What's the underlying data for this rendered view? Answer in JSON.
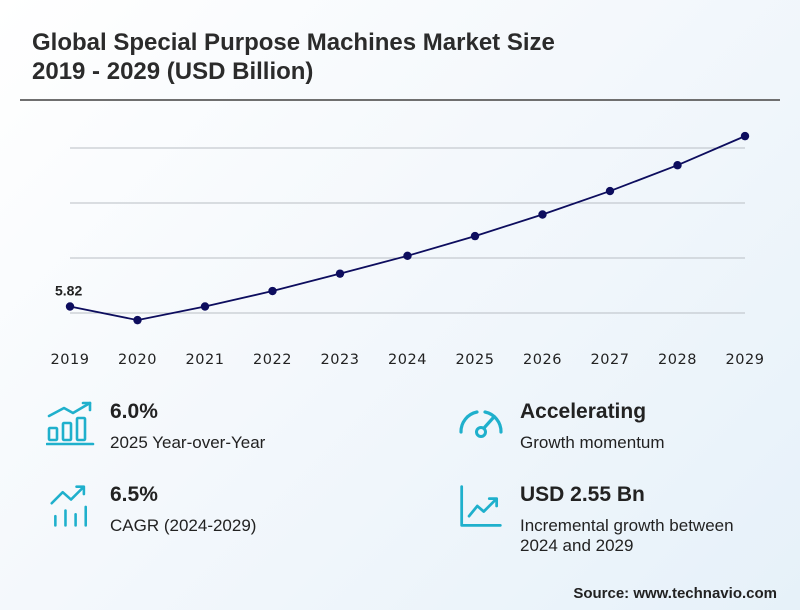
{
  "title_line1": "Global Special Purpose Machines Market Size",
  "title_line2": "2019 - 2029 (USD Billion)",
  "chart_data": {
    "type": "line",
    "x": [
      "2019",
      "2020",
      "2021",
      "2022",
      "2023",
      "2024",
      "2025",
      "2026",
      "2027",
      "2028",
      "2029"
    ],
    "series": [
      {
        "values": [
          5.82,
          5.53,
          5.82,
          6.15,
          6.52,
          6.9,
          7.32,
          7.78,
          8.28,
          8.83,
          9.45
        ]
      }
    ],
    "data_labels": [
      {
        "index": 0,
        "text": "5.82"
      }
    ],
    "ylim": [
      5.0,
      9.9
    ],
    "grid": true,
    "line_color": "#0d0d5e",
    "grid_color": "#b9bec4"
  },
  "stats": {
    "yoy": {
      "value": "6.0%",
      "desc": "2025 Year-over-Year",
      "icon": "bar-growth-icon"
    },
    "cagr": {
      "value": "6.5%",
      "desc": "CAGR (2024-2029)",
      "icon": "trend-bars-icon"
    },
    "momentum": {
      "value": "Accelerating",
      "desc": "Growth momentum",
      "icon": "gauge-icon"
    },
    "increment": {
      "value": "USD 2.55 Bn",
      "desc": "Incremental growth between 2024 and 2029",
      "icon": "line-growth-icon"
    }
  },
  "accent_color": "#1fb0cc",
  "source": "Source: www.technavio.com"
}
